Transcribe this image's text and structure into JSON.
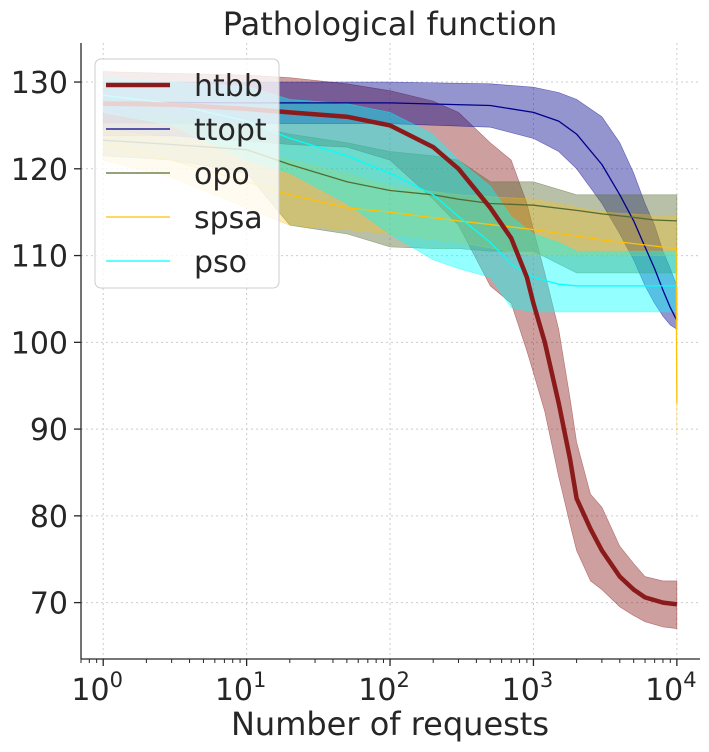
{
  "chart_data": {
    "type": "line",
    "title": "Pathological function",
    "xlabel": "Number of requests",
    "ylabel": "",
    "xscale": "log",
    "xlim": [
      0.7,
      14500
    ],
    "ylim": [
      63.5,
      134.5
    ],
    "grid": true,
    "legend_position": "top-left",
    "x_ticks": [
      {
        "value": 1,
        "base": "10",
        "exp": "0"
      },
      {
        "value": 10,
        "base": "10",
        "exp": "1"
      },
      {
        "value": 100,
        "base": "10",
        "exp": "2"
      },
      {
        "value": 1000,
        "base": "10",
        "exp": "3"
      },
      {
        "value": 10000,
        "base": "10",
        "exp": "4"
      }
    ],
    "y_ticks": [
      70,
      80,
      90,
      100,
      110,
      120,
      130
    ],
    "series": [
      {
        "name": "htbb",
        "color": "#8b1a1a",
        "width": 4.5,
        "band_opacity": 0.42,
        "x": [
          1,
          3,
          10,
          20,
          50,
          100,
          200,
          300,
          500,
          700,
          900,
          1000,
          1200,
          1500,
          1800,
          2000,
          2500,
          3000,
          4000,
          5000,
          6000,
          8000,
          10000
        ],
        "mean": [
          127.5,
          127.4,
          126.9,
          126.5,
          126.0,
          125.0,
          122.5,
          120.0,
          115.5,
          112.0,
          107.5,
          104.5,
          100.0,
          93.0,
          86.5,
          82.0,
          78.5,
          76.0,
          73.0,
          71.5,
          70.6,
          70.0,
          69.8
        ],
        "upper": [
          131.2,
          131.0,
          130.8,
          130.5,
          129.8,
          129.0,
          127.8,
          126.5,
          123.0,
          121.0,
          116.0,
          113.0,
          108.0,
          101.5,
          93.5,
          88.5,
          82.5,
          81.0,
          76.5,
          74.5,
          73.0,
          72.5,
          72.5
        ],
        "lower": [
          123.8,
          123.8,
          123.2,
          122.8,
          122.5,
          121.0,
          116.5,
          113.5,
          106.5,
          104.5,
          99.0,
          96.5,
          92.0,
          84.5,
          79.0,
          76.0,
          72.5,
          71.5,
          69.5,
          68.5,
          67.8,
          67.2,
          67.0
        ]
      },
      {
        "name": "ttopt",
        "color": "#00008b",
        "width": 1.3,
        "band_opacity": 0.42,
        "x": [
          1,
          10,
          100,
          500,
          1000,
          1500,
          2000,
          3000,
          4000,
          5000,
          6000,
          7000,
          8000,
          9000,
          10000
        ],
        "mean": [
          127.7,
          127.6,
          127.6,
          127.3,
          126.5,
          125.5,
          124.0,
          120.5,
          117.0,
          114.0,
          111.0,
          108.5,
          106.0,
          104.0,
          102.5
        ],
        "upper": [
          130.0,
          130.0,
          130.0,
          129.8,
          129.4,
          128.8,
          128.0,
          126.0,
          123.0,
          119.5,
          116.0,
          113.5,
          110.5,
          108.5,
          106.5
        ],
        "lower": [
          125.3,
          125.2,
          125.2,
          124.8,
          123.5,
          122.0,
          120.0,
          116.0,
          112.5,
          109.5,
          106.5,
          104.5,
          103.0,
          102.0,
          101.5
        ]
      },
      {
        "name": "opo",
        "color": "#556b2f",
        "width": 1.3,
        "band_opacity": 0.42,
        "x": [
          1,
          3,
          10,
          20,
          50,
          100,
          200,
          300,
          500,
          1000,
          2000,
          3000,
          5000,
          7000,
          10000
        ],
        "mean": [
          123.3,
          122.8,
          122.2,
          120.5,
          118.5,
          117.5,
          117.0,
          116.5,
          116.0,
          115.8,
          115.2,
          114.8,
          114.4,
          114.1,
          114.0
        ],
        "upper": [
          126.0,
          126.0,
          125.0,
          124.0,
          123.0,
          122.0,
          121.5,
          121.0,
          118.5,
          118.5,
          117.0,
          117.0,
          117.0,
          117.0,
          117.0
        ],
        "lower": [
          121.5,
          121.0,
          119.5,
          113.5,
          112.5,
          111.0,
          110.8,
          110.8,
          110.5,
          110.5,
          108.0,
          108.0,
          108.0,
          108.0,
          108.0
        ]
      },
      {
        "name": "spsa",
        "color": "#ffc107",
        "width": 1.3,
        "band_opacity": 0.3,
        "x": [
          1,
          3,
          10,
          20,
          50,
          100,
          300,
          1000,
          3000,
          9900,
          9950,
          10000
        ],
        "mean": [
          123.0,
          121.0,
          118.5,
          117.0,
          115.5,
          115.0,
          114.0,
          113.0,
          111.8,
          110.8,
          100.0,
          93.0
        ],
        "upper": [
          124.5,
          123.5,
          122.5,
          121.0,
          119.5,
          118.0,
          117.0,
          116.5,
          115.0,
          114.5,
          103.0,
          96.0
        ],
        "lower": [
          121.0,
          119.0,
          115.5,
          113.5,
          113.0,
          112.5,
          111.5,
          110.0,
          110.0,
          110.0,
          95.0,
          89.5
        ]
      },
      {
        "name": "pso",
        "color": "#00ffff",
        "width": 1.3,
        "band_opacity": 0.42,
        "x": [
          1,
          3,
          10,
          20,
          50,
          100,
          200,
          300,
          500,
          700,
          1000,
          1500,
          2000,
          3000,
          5000,
          10000
        ],
        "mean": [
          128.5,
          127.5,
          125.5,
          123.5,
          121.5,
          119.5,
          117.0,
          114.5,
          111.5,
          109.0,
          107.5,
          106.7,
          106.5,
          106.5,
          106.5,
          106.5
        ],
        "upper": [
          130.5,
          130.0,
          129.5,
          128.0,
          127.5,
          126.5,
          124.0,
          121.0,
          118.0,
          114.5,
          112.5,
          111.5,
          110.5,
          110.5,
          110.5,
          110.5
        ],
        "lower": [
          126.5,
          125.0,
          121.0,
          119.5,
          116.0,
          112.5,
          109.5,
          108.5,
          107.5,
          104.0,
          103.5,
          103.5,
          103.5,
          103.5,
          103.5,
          103.5
        ]
      }
    ]
  }
}
